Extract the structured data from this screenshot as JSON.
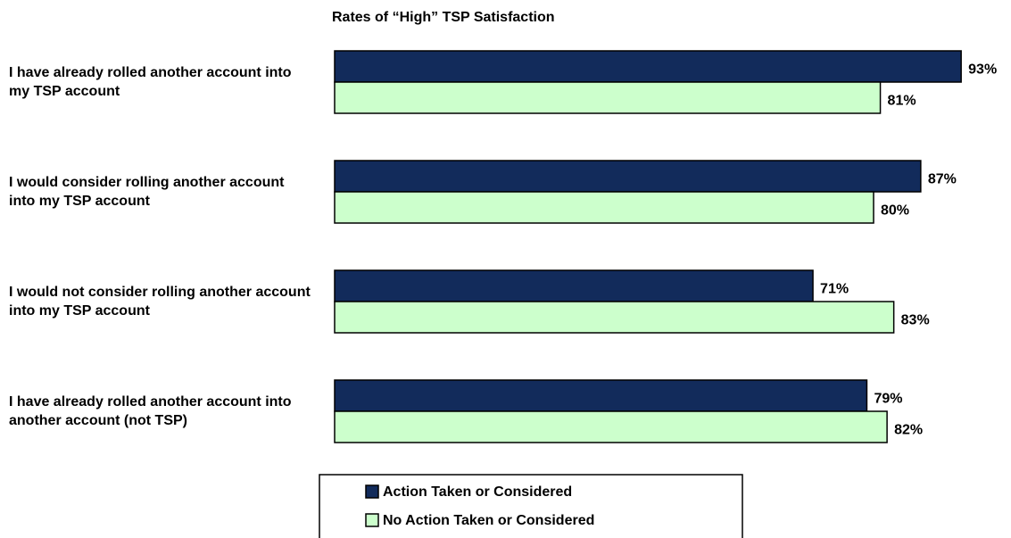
{
  "chart_data": {
    "type": "hbar",
    "title": "Rates of “High” TSP Satisfaction",
    "categories": [
      "I have already rolled another account into my TSP account",
      "I would consider rolling another account into my TSP account",
      "I would not consider rolling another account into my TSP account",
      "I have already rolled another account into another account (not TSP)"
    ],
    "series": [
      {
        "name": "Action Taken or Considered",
        "color": "#122b5b",
        "values": [
          93,
          87,
          71,
          79
        ],
        "value_labels": [
          "93%",
          "87%",
          "71%",
          "79%"
        ]
      },
      {
        "name": "No Action Taken or Considered",
        "color": "#ccffcc",
        "values": [
          81,
          80,
          83,
          82
        ],
        "value_labels": [
          "81%",
          "80%",
          "83%",
          "82%"
        ]
      }
    ],
    "xlim": [
      0,
      100
    ]
  }
}
